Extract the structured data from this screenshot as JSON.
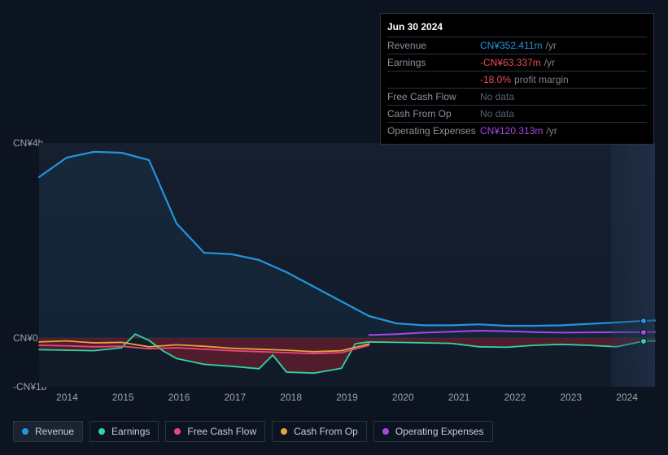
{
  "tooltip": {
    "date": "Jun 30 2024",
    "rows": [
      {
        "label": "Revenue",
        "value": "CN¥352.411m",
        "color": "#2394df",
        "suffix": "/yr"
      },
      {
        "label": "Earnings",
        "value": "-CN¥63.337m",
        "color": "#eb4d5c",
        "suffix": "/yr"
      },
      {
        "label": "",
        "value": "-18.0%",
        "color": "#eb4d5c",
        "suffix": "profit margin"
      },
      {
        "label": "Free Cash Flow",
        "value": "No data",
        "color": "#5a616c",
        "suffix": ""
      },
      {
        "label": "Cash From Op",
        "value": "No data",
        "color": "#5a616c",
        "suffix": ""
      },
      {
        "label": "Operating Expenses",
        "value": "CN¥120.313m",
        "color": "#a846e8",
        "suffix": "/yr"
      }
    ]
  },
  "chart": {
    "type": "line",
    "y_max": 4000,
    "y_min": -1000,
    "y_labels": [
      {
        "text": "CN¥4b",
        "v": 4000
      },
      {
        "text": "CN¥0",
        "v": 0
      },
      {
        "text": "-CN¥1b",
        "v": -1000
      }
    ],
    "x_labels": [
      "2014",
      "2015",
      "2016",
      "2017",
      "2018",
      "2019",
      "2020",
      "2021",
      "2022",
      "2023",
      "2024"
    ],
    "x_start": 2013.5,
    "x_end": 2024.7,
    "marker_x": 2024.5,
    "future_start_x": 2023.9,
    "background": "#161f2e",
    "grid_color": "#1f2836",
    "series": [
      {
        "name": "Revenue",
        "color": "#2394df",
        "fill_to_zero": true,
        "fill_opacity": 0.08,
        "width": 2.2,
        "points": [
          [
            2013.5,
            3300
          ],
          [
            2014,
            3700
          ],
          [
            2014.5,
            3820
          ],
          [
            2015,
            3800
          ],
          [
            2015.5,
            3650
          ],
          [
            2016,
            2350
          ],
          [
            2016.5,
            1750
          ],
          [
            2017,
            1720
          ],
          [
            2017.5,
            1600
          ],
          [
            2018,
            1350
          ],
          [
            2018.5,
            1050
          ],
          [
            2019,
            750
          ],
          [
            2019.5,
            450
          ],
          [
            2020,
            300
          ],
          [
            2020.5,
            260
          ],
          [
            2021,
            260
          ],
          [
            2021.5,
            280
          ],
          [
            2022,
            250
          ],
          [
            2022.5,
            250
          ],
          [
            2023,
            260
          ],
          [
            2023.5,
            290
          ],
          [
            2024,
            320
          ],
          [
            2024.5,
            352
          ],
          [
            2024.7,
            360
          ]
        ]
      },
      {
        "name": "Earnings",
        "color": "#2ed6a1",
        "fill_to_zero": true,
        "fill_color": "#a02030",
        "fill_opacity": 0.45,
        "width": 1.8,
        "points": [
          [
            2013.5,
            -240
          ],
          [
            2014,
            -250
          ],
          [
            2014.5,
            -260
          ],
          [
            2015,
            -200
          ],
          [
            2015.25,
            80
          ],
          [
            2015.5,
            -50
          ],
          [
            2015.75,
            -260
          ],
          [
            2016,
            -420
          ],
          [
            2016.5,
            -540
          ],
          [
            2017,
            -580
          ],
          [
            2017.5,
            -630
          ],
          [
            2017.75,
            -350
          ],
          [
            2018,
            -700
          ],
          [
            2018.5,
            -720
          ],
          [
            2019,
            -620
          ],
          [
            2019.25,
            -120
          ],
          [
            2019.5,
            -80
          ],
          [
            2020,
            -90
          ],
          [
            2020.5,
            -100
          ],
          [
            2021,
            -110
          ],
          [
            2021.5,
            -180
          ],
          [
            2022,
            -190
          ],
          [
            2022.5,
            -150
          ],
          [
            2023,
            -130
          ],
          [
            2023.5,
            -150
          ],
          [
            2024,
            -180
          ],
          [
            2024.5,
            -63
          ],
          [
            2024.7,
            -60
          ]
        ]
      },
      {
        "name": "Free Cash Flow",
        "color": "#e8467e",
        "width": 1.8,
        "points": [
          [
            2013.5,
            -150
          ],
          [
            2014,
            -160
          ],
          [
            2014.5,
            -180
          ],
          [
            2015,
            -170
          ],
          [
            2015.5,
            -220
          ],
          [
            2016,
            -200
          ],
          [
            2016.5,
            -230
          ],
          [
            2017,
            -260
          ],
          [
            2017.5,
            -280
          ],
          [
            2018,
            -300
          ],
          [
            2018.5,
            -320
          ],
          [
            2019,
            -300
          ],
          [
            2019.5,
            -150
          ]
        ]
      },
      {
        "name": "Cash From Op",
        "color": "#e8a23c",
        "width": 1.8,
        "points": [
          [
            2013.5,
            -80
          ],
          [
            2014,
            -60
          ],
          [
            2014.5,
            -100
          ],
          [
            2015,
            -90
          ],
          [
            2015.5,
            -180
          ],
          [
            2016,
            -140
          ],
          [
            2016.5,
            -170
          ],
          [
            2017,
            -210
          ],
          [
            2017.5,
            -230
          ],
          [
            2018,
            -250
          ],
          [
            2018.5,
            -280
          ],
          [
            2019,
            -260
          ],
          [
            2019.5,
            -120
          ]
        ]
      },
      {
        "name": "Operating Expenses",
        "color": "#a846e8",
        "width": 2,
        "points": [
          [
            2019.5,
            60
          ],
          [
            2020,
            80
          ],
          [
            2020.5,
            110
          ],
          [
            2021,
            130
          ],
          [
            2021.5,
            150
          ],
          [
            2022,
            140
          ],
          [
            2022.5,
            120
          ],
          [
            2023,
            110
          ],
          [
            2023.5,
            115
          ],
          [
            2024,
            118
          ],
          [
            2024.5,
            120
          ],
          [
            2024.7,
            122
          ]
        ]
      }
    ]
  },
  "legend": [
    {
      "label": "Revenue",
      "color": "#2394df",
      "active": true
    },
    {
      "label": "Earnings",
      "color": "#2ed6a1",
      "active": false
    },
    {
      "label": "Free Cash Flow",
      "color": "#e8467e",
      "active": false
    },
    {
      "label": "Cash From Op",
      "color": "#e8a23c",
      "active": false
    },
    {
      "label": "Operating Expenses",
      "color": "#a846e8",
      "active": false
    }
  ]
}
